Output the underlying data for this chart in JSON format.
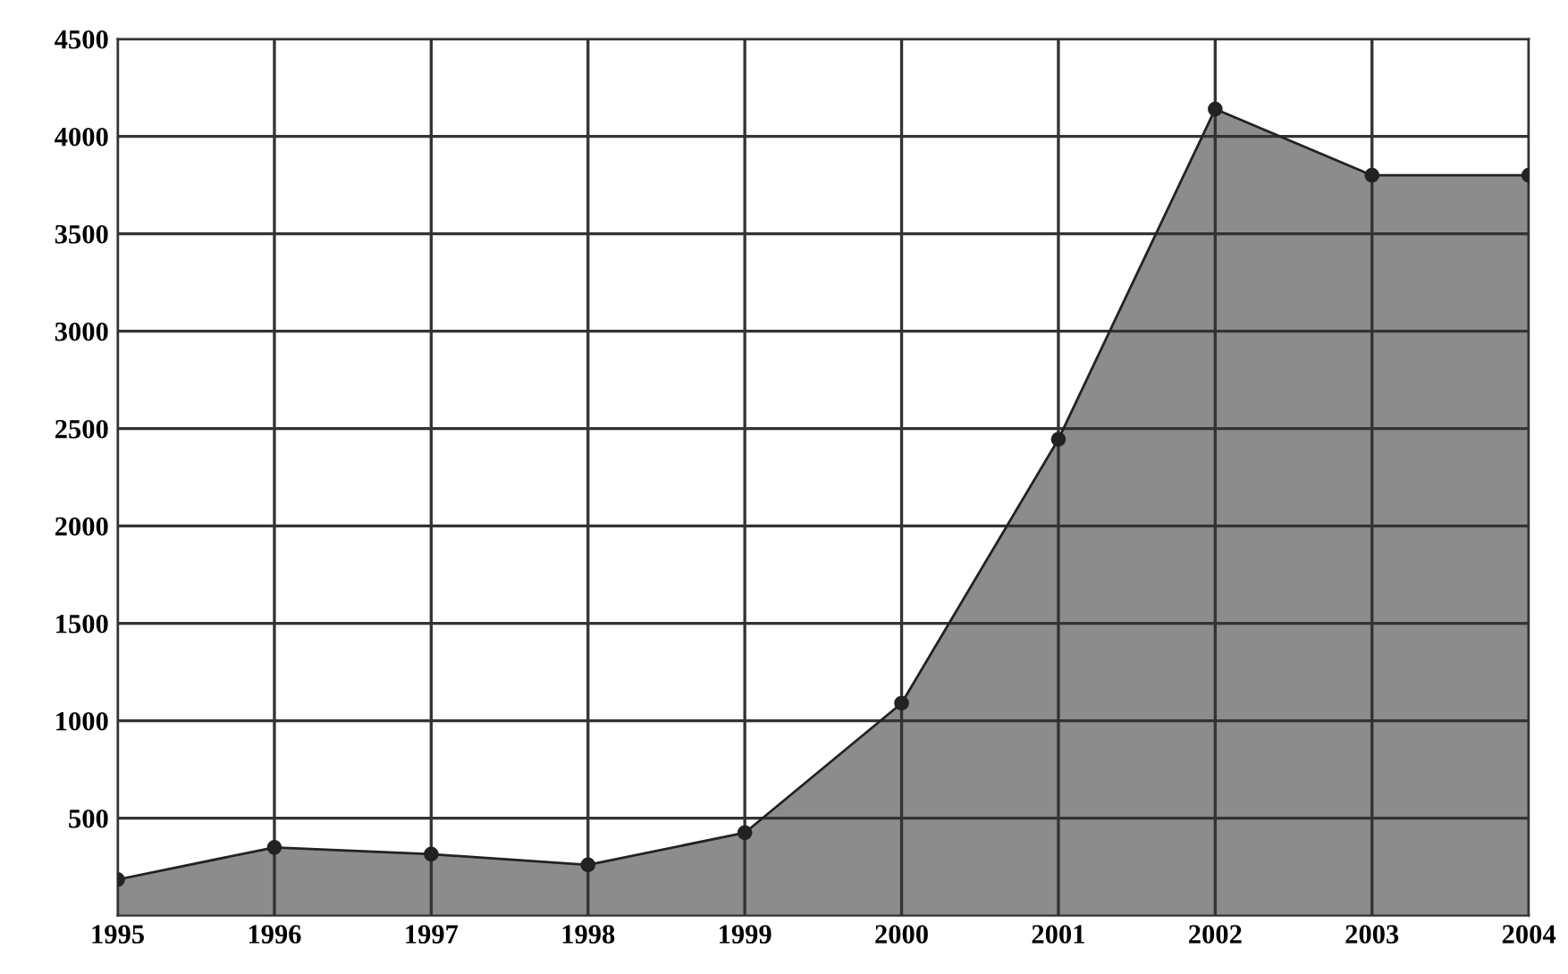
{
  "chart_data": {
    "type": "area",
    "x": [
      1995,
      1996,
      1997,
      1998,
      1999,
      2000,
      2001,
      2002,
      2003,
      2004
    ],
    "series": [
      {
        "color": "#8c8c8c",
        "values": [
          185,
          350,
          315,
          260,
          425,
          1090,
          2445,
          4140,
          3800,
          3800
        ]
      }
    ],
    "xlim": [
      1995,
      2004
    ],
    "xticks": [
      1995,
      1996,
      1997,
      1998,
      1999,
      2000,
      2001,
      2002,
      2003,
      2004
    ],
    "ylim": [
      0,
      4500
    ],
    "yticks": [
      500,
      1000,
      1500,
      2000,
      2500,
      3000,
      3500,
      4000,
      4500
    ],
    "grid": true,
    "marker": "circle",
    "line_style": "solid"
  }
}
